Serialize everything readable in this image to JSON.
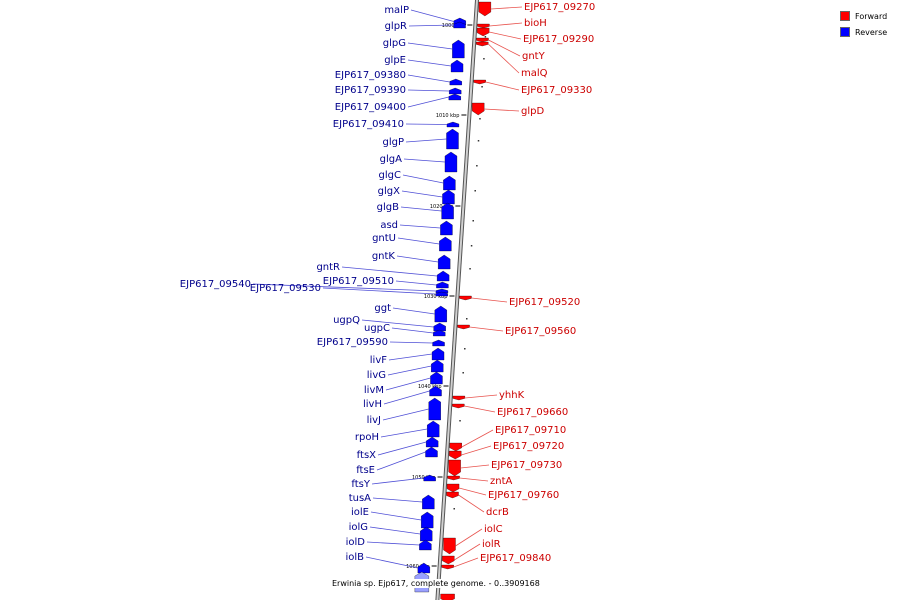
{
  "caption": "Erwinia sp. Ejp617, complete genome. - 0..3909168",
  "legend": [
    {
      "label": "Forward",
      "color": "#ff0000"
    },
    {
      "label": "Reverse",
      "color": "#0000ff"
    }
  ],
  "colors": {
    "forward": "#ff0000",
    "reverse": "#0000ff",
    "backbone": "#888888",
    "forward_leader": "#e8534e",
    "reverse_leader": "#4f4fd6"
  },
  "ticks": [
    "1000 kbp",
    "1010 kbp",
    "1020 kbp",
    "1030 kbp",
    "1040 kbp",
    "1050 kbp",
    "1060 kbp"
  ],
  "reverse_genes": [
    "malP",
    "glpR",
    "glpG",
    "glpE",
    "EJP617_09380",
    "EJP617_09390",
    "EJP617_09400",
    "EJP617_09410",
    "glgP",
    "glgA",
    "glgC",
    "glgX",
    "glgB",
    "asd",
    "gntU",
    "gntK",
    "gntR",
    "EJP617_09510",
    "EJP617_09540",
    "EJP617_09530",
    "ggt",
    "ugpQ",
    "ugpC",
    "EJP617_09590",
    "livF",
    "livG",
    "livM",
    "livH",
    "livJ",
    "rpoH",
    "ftsX",
    "ftsE",
    "ftsY",
    "tusA",
    "iolE",
    "iolG",
    "iolD",
    "iolB"
  ],
  "forward_genes": [
    "EJP617_09270",
    "bioH",
    "EJP617_09290",
    "gntY",
    "malQ",
    "EJP617_09330",
    "glpD",
    "EJP617_09520",
    "EJP617_09560",
    "yhhK",
    "EJP617_09660",
    "EJP617_09710",
    "EJP617_09720",
    "EJP617_09730",
    "zntA",
    "EJP617_09760",
    "dcrB",
    "iolC",
    "iolR",
    "EJP617_09840"
  ]
}
